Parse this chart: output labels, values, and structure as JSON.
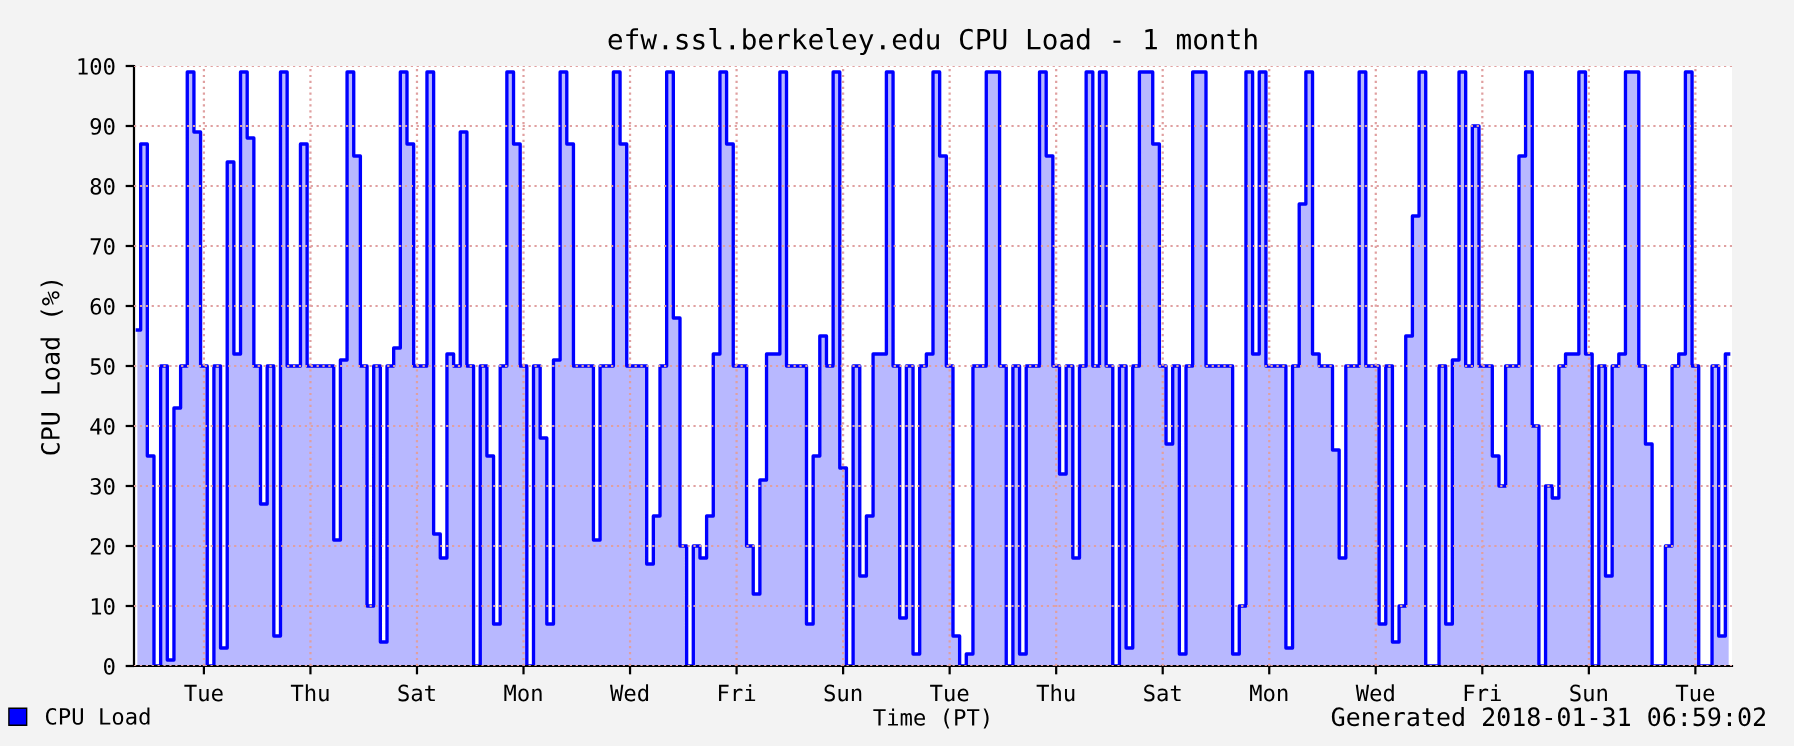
{
  "chart_data": {
    "type": "area",
    "title": "efw.ssl.berkeley.edu CPU Load - 1 month",
    "xlabel": "Time (PT)",
    "ylabel": "CPU Load (%)",
    "annotations": [
      "Generated 2018-01-31 06:59:02"
    ],
    "categories": [
      null,
      null,
      null,
      null,
      null,
      null,
      null,
      null,
      null,
      null,
      "Tue",
      null,
      null,
      null,
      null,
      null,
      null,
      null,
      null,
      null,
      null,
      null,
      null,
      null,
      null,
      null,
      "Thu",
      null,
      null,
      null,
      null,
      null,
      null,
      null,
      null,
      null,
      null,
      null,
      null,
      null,
      null,
      null,
      "Sat",
      null,
      null,
      null,
      null,
      null,
      null,
      null,
      null,
      null,
      null,
      null,
      null,
      null,
      null,
      null,
      "Mon",
      null,
      null,
      null,
      null,
      null,
      null,
      null,
      null,
      null,
      null,
      null,
      null,
      null,
      null,
      null,
      "Wed",
      null,
      null,
      null,
      null,
      null,
      null,
      null,
      null,
      null,
      null,
      null,
      null,
      null,
      null,
      null,
      "Fri",
      null,
      null,
      null,
      null,
      null,
      null,
      null,
      null,
      null,
      null,
      null,
      null,
      null,
      null,
      null,
      "Sun",
      null,
      null,
      null,
      null,
      null,
      null,
      null,
      null,
      null,
      null,
      null,
      null,
      null,
      null,
      null,
      "Tue",
      null,
      null,
      null,
      null,
      null,
      null,
      null,
      null,
      null,
      null,
      null,
      null,
      null,
      null,
      null,
      "Thu",
      null,
      null,
      null,
      null,
      null,
      null,
      null,
      null,
      null,
      null,
      null,
      null,
      null,
      null,
      null,
      "Sat",
      null,
      null,
      null,
      null,
      null,
      null,
      null,
      null,
      null,
      null,
      null,
      null,
      null,
      null,
      null,
      "Mon",
      null,
      null,
      null,
      null,
      null,
      null,
      null,
      null,
      null,
      null,
      null,
      null,
      null,
      null,
      null,
      "Wed",
      null,
      null,
      null,
      null,
      null,
      null,
      null,
      null,
      null,
      null,
      null,
      null,
      null,
      null,
      null,
      "Fri",
      null,
      null,
      null,
      null,
      null,
      null,
      null,
      null,
      null,
      null,
      null,
      null,
      null,
      null,
      null,
      "Sun",
      null,
      null,
      null,
      null,
      null,
      null,
      null,
      null,
      null,
      null,
      null,
      null,
      null,
      null,
      null,
      "Tue",
      null,
      null,
      null,
      null,
      null
    ],
    "ylim": [
      0,
      100
    ],
    "yticks": [
      0,
      10,
      20,
      30,
      40,
      50,
      60,
      70,
      80,
      90,
      100
    ],
    "grid": true,
    "legend": "bottom left",
    "line_style": "solid",
    "series": [
      {
        "name": "CPU Load",
        "color": "#0000ff",
        "values": [
          56,
          87,
          35,
          0,
          50,
          1,
          43,
          50,
          99,
          89,
          50,
          0,
          50,
          3,
          84,
          52,
          99,
          88,
          50,
          27,
          50,
          5,
          99,
          50,
          50,
          87,
          50,
          50,
          50,
          50,
          21,
          51,
          99,
          85,
          50,
          10,
          50,
          4,
          50,
          53,
          99,
          87,
          50,
          50,
          99,
          22,
          18,
          52,
          50,
          89,
          50,
          0,
          50,
          35,
          7,
          50,
          99,
          87,
          50,
          0,
          50,
          38,
          7,
          51,
          99,
          87,
          50,
          50,
          50,
          21,
          50,
          50,
          99,
          87,
          50,
          50,
          50,
          17,
          25,
          50,
          99,
          58,
          20,
          0,
          20,
          18,
          25,
          52,
          99,
          87,
          50,
          50,
          20,
          12,
          31,
          52,
          52,
          99,
          50,
          50,
          50,
          7,
          35,
          55,
          50,
          99,
          33,
          0,
          50,
          15,
          25,
          52,
          52,
          99,
          50,
          8,
          50,
          2,
          50,
          52,
          99,
          85,
          50,
          5,
          0,
          2,
          50,
          50,
          99,
          99,
          50,
          0,
          50,
          2,
          50,
          50,
          99,
          85,
          50,
          32,
          50,
          18,
          50,
          99,
          50,
          99,
          50,
          0,
          50,
          3,
          50,
          99,
          99,
          87,
          50,
          37,
          50,
          2,
          50,
          99,
          99,
          50,
          50,
          50,
          50,
          2,
          10,
          99,
          52,
          99,
          50,
          50,
          50,
          3,
          50,
          77,
          99,
          52,
          50,
          50,
          36,
          18,
          50,
          50,
          99,
          50,
          50,
          7,
          50,
          4,
          10,
          55,
          75,
          99,
          0,
          0,
          50,
          7,
          51,
          99,
          50,
          90,
          50,
          50,
          35,
          30,
          50,
          50,
          85,
          99,
          40,
          0,
          30,
          28,
          50,
          52,
          52,
          99,
          52,
          0,
          50,
          15,
          50,
          52,
          99,
          99,
          50,
          37,
          0,
          0,
          20,
          50,
          52,
          99,
          50,
          0,
          0,
          50,
          5,
          52
        ]
      }
    ]
  }
}
